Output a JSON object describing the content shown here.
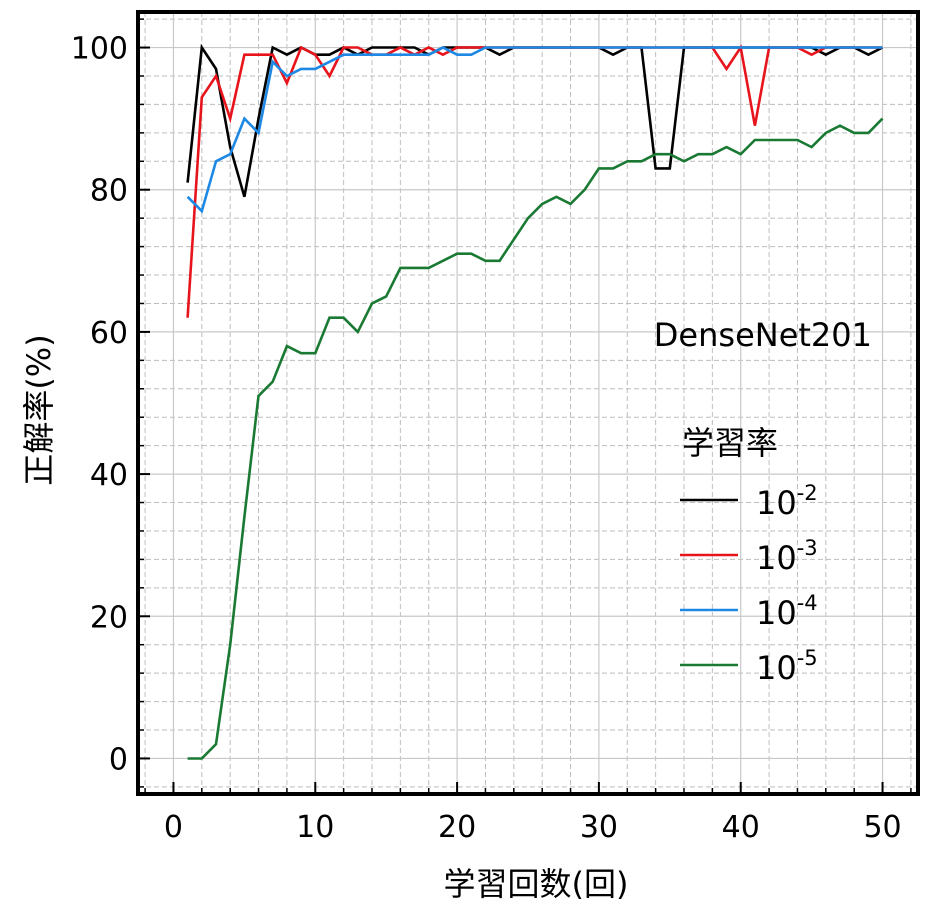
{
  "chart_data": {
    "type": "line",
    "title": "",
    "annotation": "DenseNet201",
    "xlabel": "学習回数(回)",
    "ylabel": "正解率(%)",
    "xlim": [
      -2.5,
      52.5
    ],
    "ylim": [
      -5,
      105
    ],
    "xticks": [
      0,
      10,
      20,
      30,
      40,
      50
    ],
    "yticks": [
      0,
      20,
      40,
      60,
      80,
      100
    ],
    "grid": true,
    "minor_grid": true,
    "legend": {
      "title": "学習率",
      "placement": "right",
      "entries": [
        {
          "base": "10",
          "exp": "-2",
          "color": "#000000"
        },
        {
          "base": "10",
          "exp": "-3",
          "color": "#e8141c"
        },
        {
          "base": "10",
          "exp": "-4",
          "color": "#1e88e5"
        },
        {
          "base": "10",
          "exp": "-5",
          "color": "#1a7a33"
        }
      ]
    },
    "series": [
      {
        "color": "#000000",
        "x": [
          1,
          2,
          3,
          4,
          5,
          6,
          7,
          8,
          9,
          10,
          11,
          12,
          13,
          14,
          15,
          16,
          17,
          18,
          19,
          20,
          21,
          22,
          23,
          24,
          25,
          26,
          27,
          28,
          29,
          30,
          31,
          32,
          33,
          34,
          35,
          36,
          37,
          38,
          39,
          40,
          41,
          42,
          43,
          44,
          45,
          46,
          47,
          48,
          49,
          50
        ],
        "y": [
          81,
          100,
          97,
          86,
          79,
          90,
          100,
          99,
          100,
          99,
          99,
          100,
          99,
          100,
          100,
          100,
          100,
          99,
          100,
          100,
          100,
          100,
          99,
          100,
          100,
          100,
          100,
          100,
          100,
          100,
          99,
          100,
          100,
          83,
          83,
          100,
          100,
          100,
          100,
          100,
          100,
          100,
          100,
          100,
          100,
          99,
          100,
          100,
          99,
          100
        ]
      },
      {
        "color": "#e8141c",
        "x": [
          1,
          2,
          3,
          4,
          5,
          6,
          7,
          8,
          9,
          10,
          11,
          12,
          13,
          14,
          15,
          16,
          17,
          18,
          19,
          20,
          21,
          22,
          23,
          24,
          25,
          26,
          27,
          28,
          29,
          30,
          31,
          32,
          33,
          34,
          35,
          36,
          37,
          38,
          39,
          40,
          41,
          42,
          43,
          44,
          45,
          46,
          47,
          48,
          49,
          50
        ],
        "y": [
          62,
          93,
          96,
          90,
          99,
          99,
          99,
          95,
          100,
          99,
          96,
          100,
          100,
          99,
          99,
          100,
          99,
          100,
          99,
          100,
          100,
          100,
          100,
          100,
          100,
          100,
          100,
          100,
          100,
          100,
          100,
          100,
          100,
          100,
          100,
          100,
          100,
          100,
          97,
          100,
          89,
          100,
          100,
          100,
          99,
          100,
          100,
          100,
          100,
          100
        ]
      },
      {
        "color": "#1e88e5",
        "x": [
          1,
          2,
          3,
          4,
          5,
          6,
          7,
          8,
          9,
          10,
          11,
          12,
          13,
          14,
          15,
          16,
          17,
          18,
          19,
          20,
          21,
          22,
          23,
          24,
          25,
          26,
          27,
          28,
          29,
          30,
          31,
          32,
          33,
          34,
          35,
          36,
          37,
          38,
          39,
          40,
          41,
          42,
          43,
          44,
          45,
          46,
          47,
          48,
          49,
          50
        ],
        "y": [
          79,
          77,
          84,
          85,
          90,
          88,
          98,
          96,
          97,
          97,
          98,
          99,
          99,
          99,
          99,
          99,
          99,
          99,
          100,
          99,
          99,
          100,
          100,
          100,
          100,
          100,
          100,
          100,
          100,
          100,
          100,
          100,
          100,
          100,
          100,
          100,
          100,
          100,
          100,
          100,
          100,
          100,
          100,
          100,
          100,
          100,
          100,
          100,
          100,
          100
        ]
      },
      {
        "color": "#1a7a33",
        "x": [
          1,
          2,
          3,
          4,
          5,
          6,
          7,
          8,
          9,
          10,
          11,
          12,
          13,
          14,
          15,
          16,
          17,
          18,
          19,
          20,
          21,
          22,
          23,
          24,
          25,
          26,
          27,
          28,
          29,
          30,
          31,
          32,
          33,
          34,
          35,
          36,
          37,
          38,
          39,
          40,
          41,
          42,
          43,
          44,
          45,
          46,
          47,
          48,
          49,
          50
        ],
        "y": [
          0,
          0,
          2,
          16,
          34,
          51,
          53,
          58,
          57,
          57,
          62,
          62,
          60,
          64,
          65,
          69,
          69,
          69,
          70,
          71,
          71,
          70,
          70,
          73,
          76,
          78,
          79,
          78,
          80,
          83,
          83,
          84,
          84,
          85,
          85,
          84,
          85,
          85,
          86,
          85,
          87,
          87,
          87,
          87,
          86,
          88,
          89,
          88,
          88,
          90
        ]
      }
    ]
  }
}
